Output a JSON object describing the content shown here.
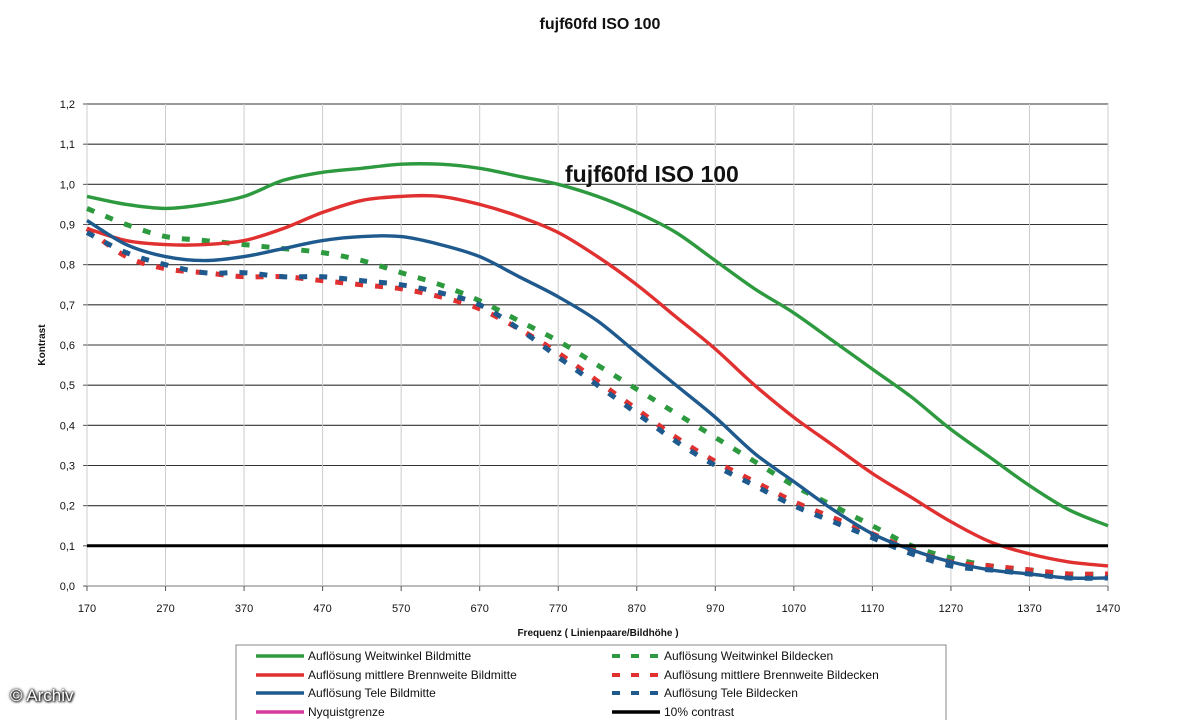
{
  "credit": "© Archiv",
  "chart_data": {
    "type": "line",
    "title": "fujf60fd ISO 100",
    "inner_title": "fujf60fd ISO 100",
    "xlabel": "Frequenz ( Linienpaare/Bildhöhe )",
    "ylabel": "Kontrast",
    "xlim": [
      170,
      1470
    ],
    "ylim": [
      0,
      1.2
    ],
    "x_ticks": [
      "170",
      "270",
      "370",
      "470",
      "570",
      "670",
      "770",
      "870",
      "970",
      "1070",
      "1170",
      "1270",
      "1370",
      "1470"
    ],
    "y_ticks": [
      "0,0",
      "0,1",
      "0,2",
      "0,3",
      "0,4",
      "0,5",
      "0,6",
      "0,7",
      "0,8",
      "0,9",
      "1,0",
      "1,1",
      "1,2"
    ],
    "grid": "horizontal",
    "legend_position": "bottom",
    "series": [
      {
        "name": "Auflösung Weitwinkel Bildmitte",
        "color": "#2e9a3f",
        "style": "solid",
        "points": [
          [
            170,
            0.97
          ],
          [
            220,
            0.95
          ],
          [
            270,
            0.94
          ],
          [
            320,
            0.95
          ],
          [
            370,
            0.97
          ],
          [
            420,
            1.01
          ],
          [
            470,
            1.03
          ],
          [
            520,
            1.04
          ],
          [
            570,
            1.05
          ],
          [
            620,
            1.05
          ],
          [
            670,
            1.04
          ],
          [
            720,
            1.02
          ],
          [
            770,
            1.0
          ],
          [
            820,
            0.97
          ],
          [
            870,
            0.93
          ],
          [
            920,
            0.88
          ],
          [
            970,
            0.81
          ],
          [
            1020,
            0.74
          ],
          [
            1070,
            0.68
          ],
          [
            1120,
            0.61
          ],
          [
            1170,
            0.54
          ],
          [
            1220,
            0.47
          ],
          [
            1270,
            0.39
          ],
          [
            1320,
            0.32
          ],
          [
            1370,
            0.25
          ],
          [
            1420,
            0.19
          ],
          [
            1470,
            0.15
          ]
        ]
      },
      {
        "name": "Auflösung mittlere Brennweite Bildmitte",
        "color": "#e03030",
        "style": "solid",
        "points": [
          [
            170,
            0.89
          ],
          [
            220,
            0.86
          ],
          [
            270,
            0.85
          ],
          [
            320,
            0.85
          ],
          [
            370,
            0.86
          ],
          [
            420,
            0.89
          ],
          [
            470,
            0.93
          ],
          [
            520,
            0.96
          ],
          [
            570,
            0.97
          ],
          [
            620,
            0.97
          ],
          [
            670,
            0.95
          ],
          [
            720,
            0.92
          ],
          [
            770,
            0.88
          ],
          [
            820,
            0.82
          ],
          [
            870,
            0.75
          ],
          [
            920,
            0.67
          ],
          [
            970,
            0.59
          ],
          [
            1020,
            0.5
          ],
          [
            1070,
            0.42
          ],
          [
            1120,
            0.35
          ],
          [
            1170,
            0.28
          ],
          [
            1220,
            0.22
          ],
          [
            1270,
            0.16
          ],
          [
            1320,
            0.11
          ],
          [
            1370,
            0.08
          ],
          [
            1420,
            0.06
          ],
          [
            1470,
            0.05
          ]
        ]
      },
      {
        "name": "Auflösung Tele Bildmitte",
        "color": "#1f5a8e",
        "style": "solid",
        "points": [
          [
            170,
            0.91
          ],
          [
            220,
            0.85
          ],
          [
            270,
            0.82
          ],
          [
            320,
            0.81
          ],
          [
            370,
            0.82
          ],
          [
            420,
            0.84
          ],
          [
            470,
            0.86
          ],
          [
            520,
            0.87
          ],
          [
            570,
            0.87
          ],
          [
            620,
            0.85
          ],
          [
            670,
            0.82
          ],
          [
            720,
            0.77
          ],
          [
            770,
            0.72
          ],
          [
            820,
            0.66
          ],
          [
            870,
            0.58
          ],
          [
            920,
            0.5
          ],
          [
            970,
            0.42
          ],
          [
            1020,
            0.33
          ],
          [
            1070,
            0.26
          ],
          [
            1120,
            0.19
          ],
          [
            1170,
            0.13
          ],
          [
            1220,
            0.09
          ],
          [
            1270,
            0.06
          ],
          [
            1320,
            0.04
          ],
          [
            1370,
            0.03
          ],
          [
            1420,
            0.02
          ],
          [
            1470,
            0.02
          ]
        ]
      },
      {
        "name": "Auflösung Weitwinkel Bildecken",
        "color": "#2e9a3f",
        "style": "dashed",
        "points": [
          [
            170,
            0.94
          ],
          [
            220,
            0.9
          ],
          [
            270,
            0.87
          ],
          [
            320,
            0.86
          ],
          [
            370,
            0.85
          ],
          [
            420,
            0.84
          ],
          [
            470,
            0.83
          ],
          [
            520,
            0.81
          ],
          [
            570,
            0.78
          ],
          [
            620,
            0.75
          ],
          [
            670,
            0.71
          ],
          [
            720,
            0.66
          ],
          [
            770,
            0.61
          ],
          [
            820,
            0.55
          ],
          [
            870,
            0.49
          ],
          [
            920,
            0.43
          ],
          [
            970,
            0.37
          ],
          [
            1020,
            0.31
          ],
          [
            1070,
            0.25
          ],
          [
            1120,
            0.2
          ],
          [
            1170,
            0.15
          ],
          [
            1220,
            0.1
          ],
          [
            1270,
            0.07
          ],
          [
            1320,
            0.05
          ],
          [
            1370,
            0.04
          ],
          [
            1420,
            0.03
          ],
          [
            1470,
            0.03
          ]
        ]
      },
      {
        "name": "Auflösung mittlere Brennweite Bildecken",
        "color": "#e03030",
        "style": "dashed",
        "points": [
          [
            170,
            0.89
          ],
          [
            220,
            0.82
          ],
          [
            270,
            0.79
          ],
          [
            320,
            0.78
          ],
          [
            370,
            0.77
          ],
          [
            420,
            0.77
          ],
          [
            470,
            0.76
          ],
          [
            520,
            0.75
          ],
          [
            570,
            0.74
          ],
          [
            620,
            0.72
          ],
          [
            670,
            0.69
          ],
          [
            720,
            0.64
          ],
          [
            770,
            0.58
          ],
          [
            820,
            0.51
          ],
          [
            870,
            0.44
          ],
          [
            920,
            0.37
          ],
          [
            970,
            0.31
          ],
          [
            1020,
            0.26
          ],
          [
            1070,
            0.21
          ],
          [
            1120,
            0.17
          ],
          [
            1170,
            0.13
          ],
          [
            1220,
            0.09
          ],
          [
            1270,
            0.06
          ],
          [
            1320,
            0.05
          ],
          [
            1370,
            0.04
          ],
          [
            1420,
            0.03
          ],
          [
            1470,
            0.03
          ]
        ]
      },
      {
        "name": "Auflösung Tele Bildecken",
        "color": "#1f5a8e",
        "style": "dashed",
        "points": [
          [
            170,
            0.88
          ],
          [
            220,
            0.83
          ],
          [
            270,
            0.8
          ],
          [
            320,
            0.78
          ],
          [
            370,
            0.78
          ],
          [
            420,
            0.77
          ],
          [
            470,
            0.77
          ],
          [
            520,
            0.76
          ],
          [
            570,
            0.75
          ],
          [
            620,
            0.73
          ],
          [
            670,
            0.7
          ],
          [
            720,
            0.64
          ],
          [
            770,
            0.57
          ],
          [
            820,
            0.5
          ],
          [
            870,
            0.43
          ],
          [
            920,
            0.36
          ],
          [
            970,
            0.3
          ],
          [
            1020,
            0.25
          ],
          [
            1070,
            0.2
          ],
          [
            1120,
            0.16
          ],
          [
            1170,
            0.12
          ],
          [
            1220,
            0.08
          ],
          [
            1270,
            0.05
          ],
          [
            1320,
            0.04
          ],
          [
            1370,
            0.03
          ],
          [
            1420,
            0.02
          ],
          [
            1470,
            0.02
          ]
        ]
      },
      {
        "name": "10% contrast",
        "color": "#000000",
        "style": "solid-bold",
        "points": [
          [
            170,
            0.1
          ],
          [
            1470,
            0.1
          ]
        ]
      }
    ],
    "legend": [
      {
        "label": "Auflösung Weitwinkel Bildmitte",
        "color": "#2e9a3f",
        "style": "solid"
      },
      {
        "label": "Auflösung Weitwinkel Bildecken",
        "color": "#2e9a3f",
        "style": "dashed"
      },
      {
        "label": "Auflösung mittlere Brennweite Bildmitte",
        "color": "#e03030",
        "style": "solid"
      },
      {
        "label": "Auflösung mittlere Brennweite Bildecken",
        "color": "#e03030",
        "style": "dashed"
      },
      {
        "label": "Auflösung Tele Bildmitte",
        "color": "#1f5a8e",
        "style": "solid"
      },
      {
        "label": "Auflösung Tele Bildecken",
        "color": "#1f5a8e",
        "style": "dashed"
      },
      {
        "label": "Nyquistgrenze",
        "color": "#d63a9c",
        "style": "solid"
      },
      {
        "label": "10% contrast",
        "color": "#000000",
        "style": "solid-bold"
      }
    ]
  }
}
